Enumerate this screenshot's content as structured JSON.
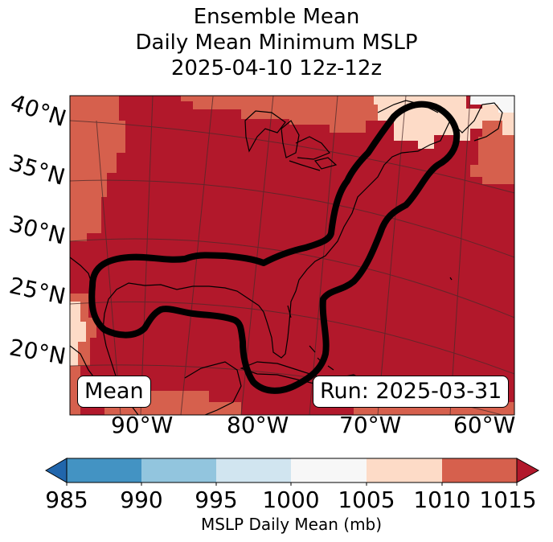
{
  "title": {
    "line1": "Ensemble Mean",
    "line2": "Daily Mean Minimum MSLP",
    "line3": "2025-04-10 12z-12z"
  },
  "map": {
    "lat_labels": [
      "40°N",
      "35°N",
      "30°N",
      "25°N",
      "20°N"
    ],
    "lon_labels": [
      "90°W",
      "80°W",
      "70°W",
      "60°W"
    ],
    "mean_label": "Mean",
    "run_label": "Run: 2025-03-31"
  },
  "colorbar": {
    "ticks": [
      "985",
      "990",
      "995",
      "1000",
      "1005",
      "1010",
      "1015"
    ],
    "label": "MSLP Daily Mean (mb)",
    "colors": [
      "#2166ac",
      "#4393c3",
      "#92c5de",
      "#d1e5f0",
      "#f7f7f7",
      "#fddbc7",
      "#d6604d",
      "#b2182b"
    ]
  },
  "fill_colors": {
    "gt_1015": "#b2182b",
    "1010_1015": "#d6604d",
    "1005_1010": "#fddbc7",
    "1000_1005": "#f7f7f7",
    "contour": "#000000"
  }
}
